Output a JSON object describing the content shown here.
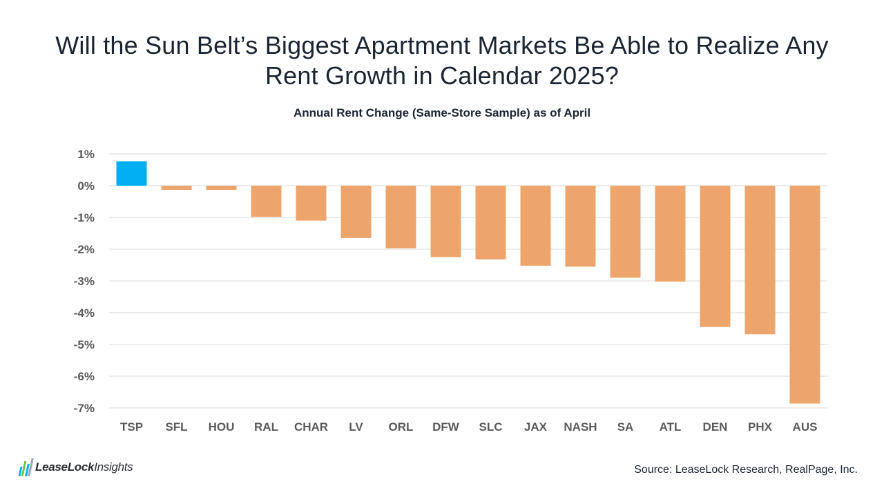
{
  "title": "Will the Sun Belt’s Biggest Apartment Markets Be Able to Realize Any Rent Growth in Calendar 2025?",
  "subtitle": "Annual Rent Change (Same-Store Sample) as of April",
  "source": "Source: LeaseLock Research, RealPage, Inc.",
  "logo": {
    "brand": "LeaseLock",
    "suffix": "Insights"
  },
  "colors": {
    "highlight": "#00b0f0",
    "bar": "#eda56b",
    "grid": "#d9d9d9"
  },
  "chart_data": {
    "type": "bar",
    "categories": [
      "TSP",
      "SFL",
      "HOU",
      "RAL",
      "CHAR",
      "LV",
      "ORL",
      "DFW",
      "SLC",
      "JAX",
      "NASH",
      "SA",
      "ATL",
      "DEN",
      "PHX",
      "AUS"
    ],
    "values": [
      0.77,
      -0.13,
      -0.13,
      -0.98,
      -1.1,
      -1.65,
      -1.97,
      -2.25,
      -2.32,
      -2.52,
      -2.55,
      -2.9,
      -3.02,
      -4.45,
      -4.68,
      -6.86
    ],
    "highlight": [
      "TSP"
    ],
    "ylim": [
      -7,
      1
    ],
    "yticks": [
      1,
      0,
      -1,
      -2,
      -3,
      -4,
      -5,
      -6,
      -7
    ],
    "ytick_labels": [
      "1%",
      "0%",
      "-1%",
      "-2%",
      "-3%",
      "-4%",
      "-5%",
      "-6%",
      "-7%"
    ],
    "grid": true,
    "title": "Annual Rent Change (Same-Store Sample) as of April",
    "xlabel": "",
    "ylabel": ""
  }
}
